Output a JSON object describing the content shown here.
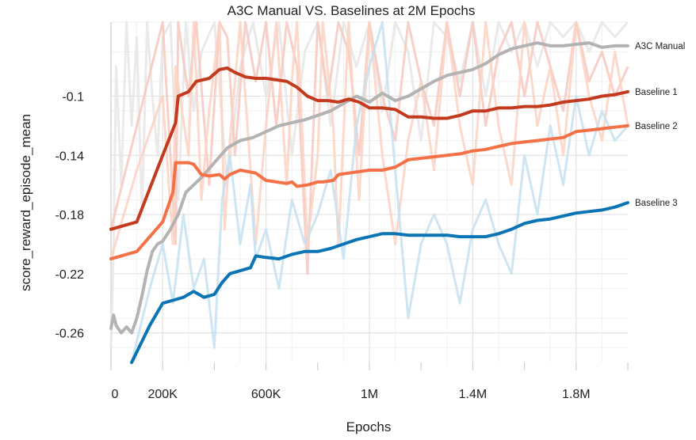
{
  "chart_data": {
    "type": "line",
    "title": "A3C Manual VS. Baselines at 2M Epochs",
    "xlabel": "Epochs",
    "ylabel": "score_reward_episode_mean",
    "xlim": [
      0,
      2000000
    ],
    "ylim": [
      -0.28,
      -0.05
    ],
    "x_ticks": [
      {
        "value": 0,
        "label": "0"
      },
      {
        "value": 200000,
        "label": "200K"
      },
      {
        "value": 600000,
        "label": "600K"
      },
      {
        "value": 1000000,
        "label": "1M"
      },
      {
        "value": 1400000,
        "label": "1.4M"
      },
      {
        "value": 1800000,
        "label": "1.8M"
      }
    ],
    "y_ticks": [
      {
        "value": -0.1,
        "label": "-0.1"
      },
      {
        "value": -0.14,
        "label": "-0.14"
      },
      {
        "value": -0.18,
        "label": "-0.18"
      },
      {
        "value": -0.22,
        "label": "-0.22"
      },
      {
        "value": -0.26,
        "label": "-0.26"
      }
    ],
    "grid": true,
    "legend": "end-of-line labels",
    "series": [
      {
        "name": "A3C Manual",
        "color": "#b3b3b3",
        "raw_color": "#e6e6e6",
        "x": [
          0,
          10000,
          20000,
          40000,
          60000,
          80000,
          100000,
          120000,
          140000,
          160000,
          180000,
          200000,
          230000,
          260000,
          290000,
          320000,
          350000,
          400000,
          450000,
          500000,
          550000,
          600000,
          650000,
          700000,
          750000,
          800000,
          850000,
          900000,
          950000,
          1000000,
          1050000,
          1100000,
          1150000,
          1200000,
          1250000,
          1300000,
          1350000,
          1400000,
          1450000,
          1500000,
          1550000,
          1600000,
          1650000,
          1700000,
          1750000,
          1800000,
          1850000,
          1900000,
          1950000,
          2000000
        ],
        "y": [
          -0.257,
          -0.248,
          -0.255,
          -0.26,
          -0.256,
          -0.26,
          -0.25,
          -0.235,
          -0.218,
          -0.205,
          -0.2,
          -0.198,
          -0.19,
          -0.18,
          -0.165,
          -0.16,
          -0.155,
          -0.145,
          -0.135,
          -0.13,
          -0.128,
          -0.124,
          -0.12,
          -0.118,
          -0.116,
          -0.113,
          -0.11,
          -0.105,
          -0.1,
          -0.104,
          -0.098,
          -0.103,
          -0.1,
          -0.095,
          -0.09,
          -0.086,
          -0.084,
          -0.082,
          -0.078,
          -0.072,
          -0.068,
          -0.066,
          -0.064,
          -0.066,
          -0.066,
          -0.065,
          -0.064,
          -0.067,
          -0.066,
          -0.066
        ],
        "raw_y": [
          -0.27,
          -0.2,
          -0.08,
          -0.16,
          -0.05,
          -0.12,
          -0.06,
          -0.18,
          -0.05,
          -0.1,
          -0.14,
          -0.06,
          -0.05,
          -0.17,
          -0.05,
          -0.11,
          -0.07,
          -0.05,
          -0.16,
          -0.08,
          -0.05,
          -0.1,
          -0.05,
          -0.14,
          -0.07,
          -0.05,
          -0.12,
          -0.05,
          -0.08,
          -0.05,
          -0.11,
          -0.05,
          -0.07,
          -0.13,
          -0.05,
          -0.06,
          -0.09,
          -0.05,
          -0.1,
          -0.05,
          -0.07,
          -0.05,
          -0.08,
          -0.05,
          -0.06,
          -0.05,
          -0.07,
          -0.05,
          -0.06,
          -0.05
        ]
      },
      {
        "name": "Baseline 1",
        "color": "#c33a1e",
        "raw_color": "#f6c9bf",
        "x": [
          0,
          100000,
          200000,
          250000,
          260000,
          300000,
          330000,
          380000,
          420000,
          450000,
          480000,
          520000,
          560000,
          600000,
          640000,
          680000,
          720000,
          760000,
          800000,
          840000,
          880000,
          920000,
          960000,
          1000000,
          1050000,
          1100000,
          1150000,
          1200000,
          1250000,
          1300000,
          1350000,
          1400000,
          1450000,
          1500000,
          1550000,
          1600000,
          1650000,
          1700000,
          1750000,
          1800000,
          1850000,
          1900000,
          1950000,
          2000000
        ],
        "y": [
          -0.19,
          -0.185,
          -0.14,
          -0.118,
          -0.1,
          -0.097,
          -0.09,
          -0.088,
          -0.082,
          -0.081,
          -0.084,
          -0.087,
          -0.088,
          -0.088,
          -0.089,
          -0.09,
          -0.094,
          -0.1,
          -0.103,
          -0.103,
          -0.104,
          -0.102,
          -0.104,
          -0.108,
          -0.108,
          -0.109,
          -0.114,
          -0.114,
          -0.115,
          -0.115,
          -0.113,
          -0.11,
          -0.11,
          -0.108,
          -0.108,
          -0.107,
          -0.107,
          -0.106,
          -0.104,
          -0.103,
          -0.102,
          -0.1,
          -0.099,
          -0.097
        ],
        "raw_y": [
          -0.19,
          -0.12,
          -0.05,
          -0.2,
          -0.05,
          -0.1,
          -0.05,
          -0.16,
          -0.05,
          -0.06,
          -0.14,
          -0.05,
          -0.09,
          -0.05,
          -0.12,
          -0.05,
          -0.08,
          -0.22,
          -0.05,
          -0.1,
          -0.05,
          -0.07,
          -0.14,
          -0.05,
          -0.1,
          -0.13,
          -0.05,
          -0.09,
          -0.12,
          -0.05,
          -0.1,
          -0.05,
          -0.12,
          -0.07,
          -0.05,
          -0.1,
          -0.05,
          -0.08,
          -0.11,
          -0.05,
          -0.09,
          -0.07,
          -0.1,
          -0.08
        ]
      },
      {
        "name": "Baseline 2",
        "color": "#f47147",
        "raw_color": "#fbd2c2",
        "x": [
          0,
          100000,
          200000,
          240000,
          250000,
          300000,
          320000,
          350000,
          380000,
          420000,
          440000,
          460000,
          500000,
          560000,
          600000,
          640000,
          680000,
          700000,
          720000,
          760000,
          800000,
          820000,
          860000,
          880000,
          920000,
          960000,
          1000000,
          1050000,
          1100000,
          1150000,
          1200000,
          1250000,
          1300000,
          1350000,
          1400000,
          1450000,
          1500000,
          1550000,
          1600000,
          1650000,
          1700000,
          1750000,
          1800000,
          1850000,
          1900000,
          1950000,
          2000000
        ],
        "y": [
          -0.21,
          -0.205,
          -0.185,
          -0.165,
          -0.145,
          -0.145,
          -0.146,
          -0.153,
          -0.154,
          -0.153,
          -0.156,
          -0.153,
          -0.15,
          -0.152,
          -0.157,
          -0.158,
          -0.159,
          -0.158,
          -0.161,
          -0.16,
          -0.158,
          -0.158,
          -0.157,
          -0.153,
          -0.152,
          -0.151,
          -0.15,
          -0.15,
          -0.148,
          -0.143,
          -0.142,
          -0.141,
          -0.14,
          -0.139,
          -0.137,
          -0.136,
          -0.134,
          -0.132,
          -0.131,
          -0.13,
          -0.129,
          -0.128,
          -0.124,
          -0.123,
          -0.122,
          -0.121,
          -0.12
        ],
        "raw_y": [
          -0.21,
          -0.15,
          -0.1,
          -0.2,
          -0.08,
          -0.14,
          -0.05,
          -0.17,
          -0.11,
          -0.05,
          -0.19,
          -0.13,
          -0.05,
          -0.2,
          -0.12,
          -0.05,
          -0.16,
          -0.09,
          -0.05,
          -0.2,
          -0.14,
          -0.05,
          -0.12,
          -0.2,
          -0.05,
          -0.17,
          -0.05,
          -0.14,
          -0.2,
          -0.13,
          -0.09,
          -0.15,
          -0.05,
          -0.12,
          -0.16,
          -0.05,
          -0.12,
          -0.16,
          -0.05,
          -0.12,
          -0.08,
          -0.14,
          -0.05,
          -0.1,
          -0.13,
          -0.07,
          -0.12
        ]
      },
      {
        "name": "Baseline 3",
        "color": "#0a74b5",
        "raw_color": "#c6e0f0",
        "x": [
          80000,
          150000,
          200000,
          240000,
          280000,
          320000,
          360000,
          400000,
          430000,
          460000,
          500000,
          540000,
          560000,
          600000,
          650000,
          700000,
          750000,
          800000,
          850000,
          900000,
          950000,
          1000000,
          1050000,
          1100000,
          1150000,
          1200000,
          1250000,
          1300000,
          1350000,
          1400000,
          1450000,
          1500000,
          1550000,
          1600000,
          1650000,
          1700000,
          1750000,
          1800000,
          1850000,
          1900000,
          1950000,
          2000000
        ],
        "y": [
          -0.28,
          -0.255,
          -0.24,
          -0.238,
          -0.236,
          -0.232,
          -0.236,
          -0.234,
          -0.226,
          -0.22,
          -0.218,
          -0.216,
          -0.208,
          -0.209,
          -0.21,
          -0.207,
          -0.205,
          -0.205,
          -0.203,
          -0.2,
          -0.197,
          -0.195,
          -0.193,
          -0.193,
          -0.194,
          -0.194,
          -0.194,
          -0.194,
          -0.195,
          -0.195,
          -0.195,
          -0.193,
          -0.19,
          -0.186,
          -0.184,
          -0.183,
          -0.181,
          -0.179,
          -0.178,
          -0.177,
          -0.175,
          -0.172
        ],
        "raw_y": [
          -0.28,
          -0.23,
          -0.2,
          -0.24,
          -0.18,
          -0.23,
          -0.21,
          -0.27,
          -0.17,
          -0.14,
          -0.2,
          -0.16,
          -0.21,
          -0.19,
          -0.23,
          -0.17,
          -0.2,
          -0.18,
          -0.15,
          -0.21,
          -0.12,
          -0.08,
          -0.05,
          -0.15,
          -0.25,
          -0.2,
          -0.18,
          -0.2,
          -0.24,
          -0.19,
          -0.17,
          -0.2,
          -0.22,
          -0.14,
          -0.18,
          -0.12,
          -0.16,
          -0.1,
          -0.14,
          -0.11,
          -0.13,
          -0.12
        ]
      }
    ]
  }
}
